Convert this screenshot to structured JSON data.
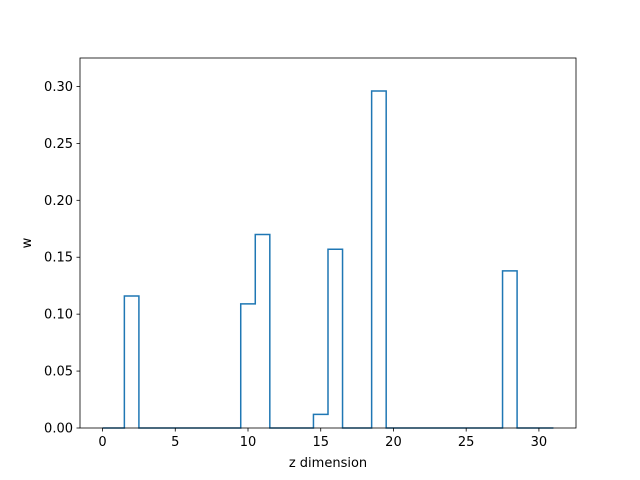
{
  "chart_data": {
    "type": "line",
    "style": "step-mid",
    "title": "",
    "xlabel": "z dimension",
    "ylabel": "w",
    "xlim": [
      -1.55,
      32.55
    ],
    "ylim": [
      0.0,
      0.325
    ],
    "x": [
      0,
      1,
      2,
      3,
      4,
      5,
      6,
      7,
      8,
      9,
      10,
      11,
      12,
      13,
      14,
      15,
      16,
      17,
      18,
      19,
      20,
      21,
      22,
      23,
      24,
      25,
      26,
      27,
      28,
      29,
      30,
      31
    ],
    "series": [
      {
        "name": "",
        "color": "#1f77b4",
        "values": [
          0,
          0,
          0.116,
          0,
          0,
          0,
          0,
          0,
          0,
          0,
          0.109,
          0.17,
          0,
          0,
          0,
          0.012,
          0.157,
          0,
          0,
          0.296,
          0,
          0,
          0,
          0,
          0,
          0,
          0,
          0,
          0.138,
          0,
          0,
          0
        ]
      }
    ],
    "xticks": [
      0,
      5,
      10,
      15,
      20,
      25,
      30
    ],
    "xtick_labels": [
      "0",
      "5",
      "10",
      "15",
      "20",
      "25",
      "30"
    ],
    "yticks": [
      0.0,
      0.05,
      0.1,
      0.15,
      0.2,
      0.25,
      0.3
    ],
    "ytick_labels": [
      "0.00",
      "0.05",
      "0.10",
      "0.15",
      "0.20",
      "0.25",
      "0.30"
    ],
    "grid": false,
    "legend": "none"
  }
}
